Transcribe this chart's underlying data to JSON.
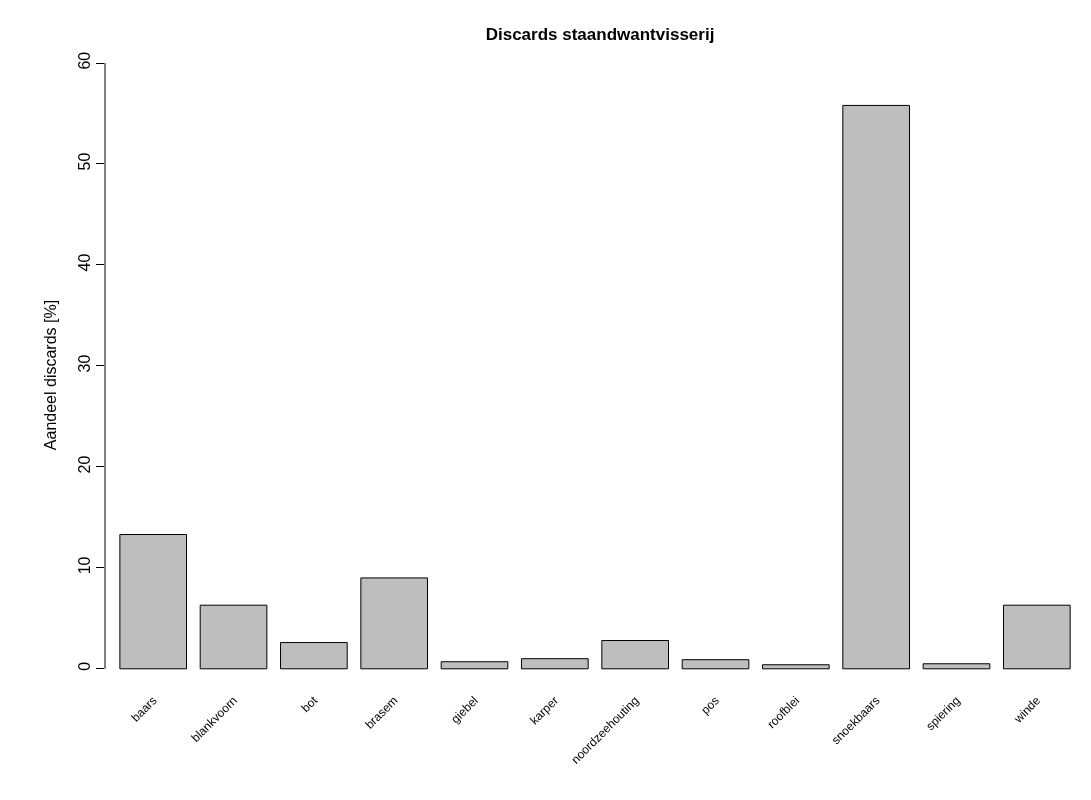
{
  "chart_data": {
    "type": "bar",
    "title": "Discards staandwantvisserij",
    "ylabel": "Aandeel discards [%]",
    "categories": [
      "baars",
      "blankvoorn",
      "bot",
      "brasem",
      "giebel",
      "karper",
      "noordzeehouting",
      "pos",
      "roofblei",
      "snoekbaars",
      "spiering",
      "winde"
    ],
    "values": [
      13.3,
      6.3,
      2.6,
      9.0,
      0.7,
      1.0,
      2.8,
      0.9,
      0.4,
      55.8,
      0.5,
      6.3
    ],
    "color": "#bebebe",
    "ylim": [
      0,
      60
    ],
    "yticks": [
      0,
      10,
      20,
      30,
      40,
      50,
      60
    ],
    "grid": false
  }
}
